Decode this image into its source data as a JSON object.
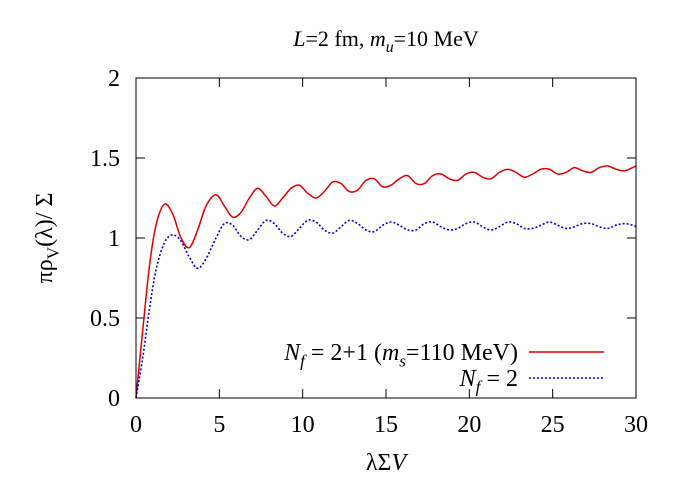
{
  "chart_data": {
    "type": "line",
    "title": "L=2 fm, m_u=10 MeV",
    "title_parts": [
      {
        "text": "L",
        "style": "italic"
      },
      {
        "text": "=2 fm, ",
        "style": "normal"
      },
      {
        "text": "m",
        "style": "italic"
      },
      {
        "text": "u",
        "style": "sub-italic"
      },
      {
        "text": "=10 MeV",
        "style": "normal"
      }
    ],
    "xlabel": "λΣV",
    "xlabel_parts": [
      {
        "text": "λΣ",
        "style": "normal"
      },
      {
        "text": "V",
        "style": "italic"
      }
    ],
    "ylabel": "πρ_V(λ)/ Σ",
    "ylabel_parts": [
      {
        "text": "πρ",
        "style": "normal"
      },
      {
        "text": "V",
        "style": "sub"
      },
      {
        "text": "(λ)/ Σ",
        "style": "normal"
      }
    ],
    "xlim": [
      0,
      30
    ],
    "ylim": [
      0,
      2
    ],
    "x_ticks": [
      "0",
      "5",
      "10",
      "15",
      "20",
      "25",
      "30"
    ],
    "y_ticks": [
      "0",
      "0.5",
      "1",
      "1.5",
      "2"
    ],
    "grid": false,
    "legend_position": "bottom-right",
    "series": [
      {
        "name": "N_f = 2+1 (m_s=110 MeV)",
        "name_parts": [
          {
            "text": "N",
            "style": "italic"
          },
          {
            "text": "f",
            "style": "sub-italic"
          },
          {
            "text": " = 2+1 (",
            "style": "normal"
          },
          {
            "text": "m",
            "style": "italic"
          },
          {
            "text": "s",
            "style": "sub-italic"
          },
          {
            "text": "=110 MeV)",
            "style": "normal"
          }
        ],
        "color": "#e00000",
        "dash": "solid",
        "x": [
          0,
          0.4,
          0.8,
          1.2,
          1.7,
          2.2,
          2.7,
          3.2,
          3.7,
          4.2,
          4.8,
          5.3,
          5.8,
          6.3,
          6.8,
          7.3,
          7.8,
          8.3,
          8.8,
          9.3,
          9.8,
          10.3,
          10.8,
          11.3,
          11.8,
          12.3,
          12.8,
          13.3,
          13.8,
          14.3,
          14.8,
          15.3,
          15.8,
          16.3,
          16.8,
          17.3,
          17.8,
          18.3,
          18.8,
          19.3,
          19.8,
          20.3,
          20.8,
          21.3,
          21.8,
          22.3,
          22.8,
          23.3,
          23.8,
          24.3,
          24.8,
          25.3,
          25.8,
          26.3,
          26.8,
          27.3,
          27.8,
          28.3,
          28.8,
          29.3,
          29.8,
          30
        ],
        "y": [
          0,
          0.42,
          0.82,
          1.08,
          1.21,
          1.15,
          1.0,
          0.94,
          1.05,
          1.2,
          1.27,
          1.2,
          1.13,
          1.16,
          1.25,
          1.31,
          1.26,
          1.2,
          1.25,
          1.31,
          1.33,
          1.28,
          1.25,
          1.29,
          1.35,
          1.34,
          1.29,
          1.3,
          1.36,
          1.37,
          1.32,
          1.33,
          1.37,
          1.39,
          1.34,
          1.34,
          1.39,
          1.4,
          1.37,
          1.36,
          1.4,
          1.41,
          1.38,
          1.37,
          1.41,
          1.43,
          1.41,
          1.38,
          1.4,
          1.43,
          1.43,
          1.4,
          1.41,
          1.44,
          1.42,
          1.41,
          1.44,
          1.45,
          1.43,
          1.42,
          1.44,
          1.45
        ]
      },
      {
        "name": "N_f = 2",
        "name_parts": [
          {
            "text": "N",
            "style": "italic"
          },
          {
            "text": "f",
            "style": "sub-italic"
          },
          {
            "text": " = 2",
            "style": "normal"
          }
        ],
        "color": "#0000d8",
        "dash": "dotted",
        "x": [
          0,
          0.4,
          0.8,
          1.2,
          1.7,
          2.2,
          2.7,
          3.2,
          3.7,
          4.2,
          4.8,
          5.3,
          5.8,
          6.3,
          6.8,
          7.3,
          7.8,
          8.3,
          8.8,
          9.3,
          9.8,
          10.3,
          10.8,
          11.3,
          11.8,
          12.3,
          12.8,
          13.3,
          13.8,
          14.3,
          14.8,
          15.3,
          15.8,
          16.3,
          16.8,
          17.3,
          17.8,
          18.3,
          18.8,
          19.3,
          19.8,
          20.3,
          20.8,
          21.3,
          21.8,
          22.3,
          22.8,
          23.3,
          23.8,
          24.3,
          24.8,
          25.3,
          25.8,
          26.3,
          26.8,
          27.3,
          27.8,
          28.3,
          28.8,
          29.3,
          29.8,
          30
        ],
        "y": [
          0,
          0.25,
          0.55,
          0.8,
          0.97,
          1.02,
          0.98,
          0.88,
          0.81,
          0.87,
          1.0,
          1.09,
          1.08,
          1.01,
          0.99,
          1.05,
          1.11,
          1.09,
          1.03,
          1.01,
          1.06,
          1.11,
          1.1,
          1.05,
          1.03,
          1.07,
          1.11,
          1.09,
          1.05,
          1.04,
          1.08,
          1.1,
          1.08,
          1.05,
          1.05,
          1.09,
          1.1,
          1.07,
          1.05,
          1.06,
          1.09,
          1.1,
          1.07,
          1.05,
          1.07,
          1.1,
          1.09,
          1.06,
          1.06,
          1.08,
          1.1,
          1.08,
          1.06,
          1.07,
          1.09,
          1.09,
          1.07,
          1.06,
          1.08,
          1.09,
          1.08,
          1.07
        ]
      }
    ]
  }
}
